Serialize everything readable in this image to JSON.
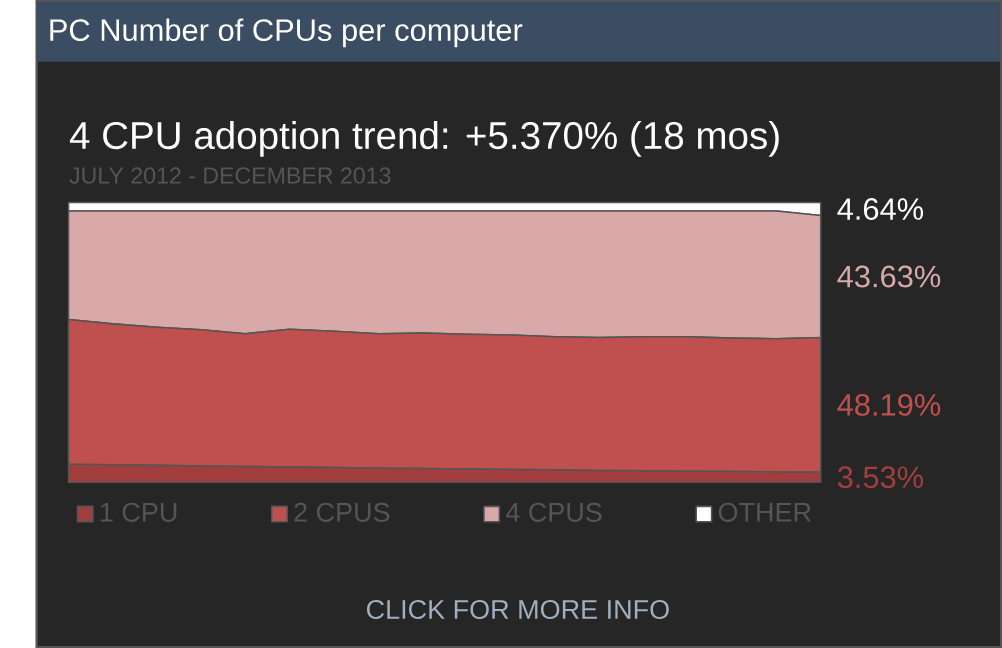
{
  "chart_data": {
    "type": "area",
    "stacked": true,
    "title": "PC Number of CPUs per computer",
    "subtitle": "4 CPU adoption trend: +5.370% (18 mos)",
    "annotations": [
      "JULY 2012 - DECEMBER 2013",
      "CLICK FOR MORE INFO"
    ],
    "categories": [
      null,
      null,
      null,
      null,
      null,
      null,
      null,
      null,
      null,
      null,
      null,
      null,
      null,
      null,
      null,
      null,
      null,
      null
    ],
    "series": [
      {
        "name": "1 CPU",
        "color": "#a23e3e",
        "values": [
          6.4,
          6.2,
          6.0,
          5.8,
          5.6,
          5.4,
          5.2,
          5.0,
          4.9,
          4.7,
          4.5,
          4.4,
          4.2,
          4.1,
          3.9,
          3.8,
          3.65,
          3.53
        ],
        "value_labels": [
          null,
          null,
          null,
          null,
          null,
          null,
          null,
          null,
          null,
          null,
          null,
          null,
          null,
          null,
          null,
          null,
          null,
          "3.53%"
        ]
      },
      {
        "name": "2 CPUS",
        "color": "#c0504d",
        "values": [
          51.8,
          50.4,
          49.4,
          48.7,
          47.5,
          49.3,
          48.8,
          48.1,
          48.4,
          48.2,
          48.1,
          47.6,
          47.5,
          47.9,
          48.1,
          47.7,
          47.65,
          48.19
        ],
        "value_labels": [
          null,
          null,
          null,
          null,
          null,
          null,
          null,
          null,
          null,
          null,
          null,
          null,
          null,
          null,
          null,
          null,
          null,
          "48.19%"
        ]
      },
      {
        "name": "4 CPUS",
        "color": "#d9a9a9",
        "values": [
          38.8,
          40.4,
          41.6,
          42.5,
          43.9,
          42.3,
          43.0,
          43.9,
          43.7,
          44.1,
          44.4,
          45.0,
          45.3,
          45.0,
          45.0,
          45.5,
          45.7,
          43.63
        ],
        "value_labels": [
          null,
          null,
          null,
          null,
          null,
          null,
          null,
          null,
          null,
          null,
          null,
          null,
          null,
          null,
          null,
          null,
          null,
          "43.63%"
        ]
      },
      {
        "name": "OTHER",
        "color": "#ffffff",
        "values": [
          3.0,
          3.0,
          3.0,
          3.0,
          3.0,
          3.0,
          3.0,
          3.0,
          3.0,
          3.0,
          3.0,
          3.0,
          3.0,
          3.0,
          3.0,
          3.0,
          3.0,
          4.64
        ],
        "value_labels": [
          null,
          null,
          null,
          null,
          null,
          null,
          null,
          null,
          null,
          null,
          null,
          null,
          null,
          null,
          null,
          null,
          null,
          "4.64%"
        ]
      }
    ],
    "legend": "bottom"
  }
}
